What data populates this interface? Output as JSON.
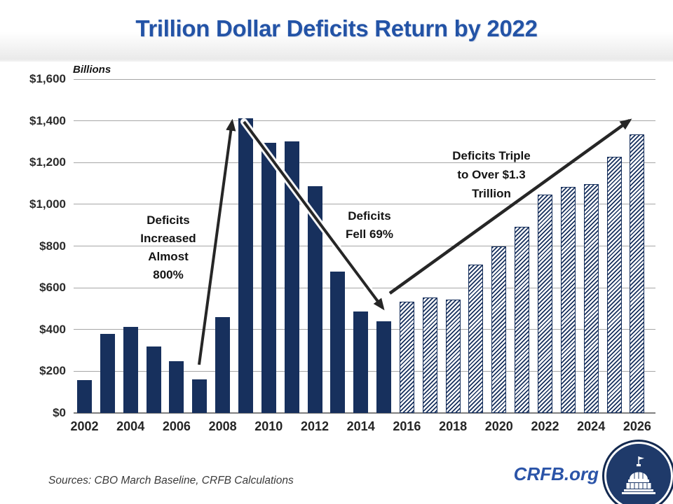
{
  "title": "Trillion Dollar Deficits Return by 2022",
  "axis_unit_label": "Billions",
  "annotations": {
    "increase": {
      "line1": "Deficits",
      "line2": "Increased",
      "line3": "Almost",
      "line4": "800%"
    },
    "fell": {
      "line1": "Deficits",
      "line2": "Fell 69%"
    },
    "triple": {
      "line1": "Deficits Triple",
      "line2": "to Over $1.3",
      "line3": "Trillion"
    }
  },
  "footer": {
    "sources": "Sources: CBO March Baseline, CRFB Calculations",
    "brand": "CRFB.org",
    "logo_icon": "capitol-dome-icon"
  },
  "colors": {
    "title_blue": "#2353a6",
    "bar_navy": "#17305d",
    "brand_blue": "#2b54a8",
    "logo_navy": "#1f3a6a",
    "gridline_gray": "#a6a6a6",
    "arrow_black": "#262626"
  },
  "chart_data": {
    "type": "bar",
    "title": "Trillion Dollar Deficits Return by 2022",
    "ylabel": "Billions",
    "xlabel": "",
    "ylim": [
      0,
      1600
    ],
    "ytick_step": 200,
    "ytick_labels": [
      "$0",
      "$200",
      "$400",
      "$600",
      "$800",
      "$1,000",
      "$1,200",
      "$1,400",
      "$1,600"
    ],
    "grid": "horizontal",
    "legend": "none",
    "years": [
      2002,
      2003,
      2004,
      2005,
      2006,
      2007,
      2008,
      2009,
      2010,
      2011,
      2012,
      2013,
      2014,
      2015,
      2016,
      2017,
      2018,
      2019,
      2020,
      2021,
      2022,
      2023,
      2024,
      2025,
      2026
    ],
    "values": [
      158,
      378,
      413,
      318,
      248,
      161,
      459,
      1413,
      1294,
      1300,
      1087,
      679,
      485,
      438,
      534,
      552,
      544,
      710,
      798,
      893,
      1046,
      1083,
      1096,
      1227,
      1336
    ],
    "projected_start_year": 2016,
    "projected_style": "diagonal-hatch",
    "xtick_years": [
      2002,
      2004,
      2006,
      2008,
      2010,
      2012,
      2014,
      2016,
      2018,
      2020,
      2022,
      2024,
      2026
    ]
  }
}
